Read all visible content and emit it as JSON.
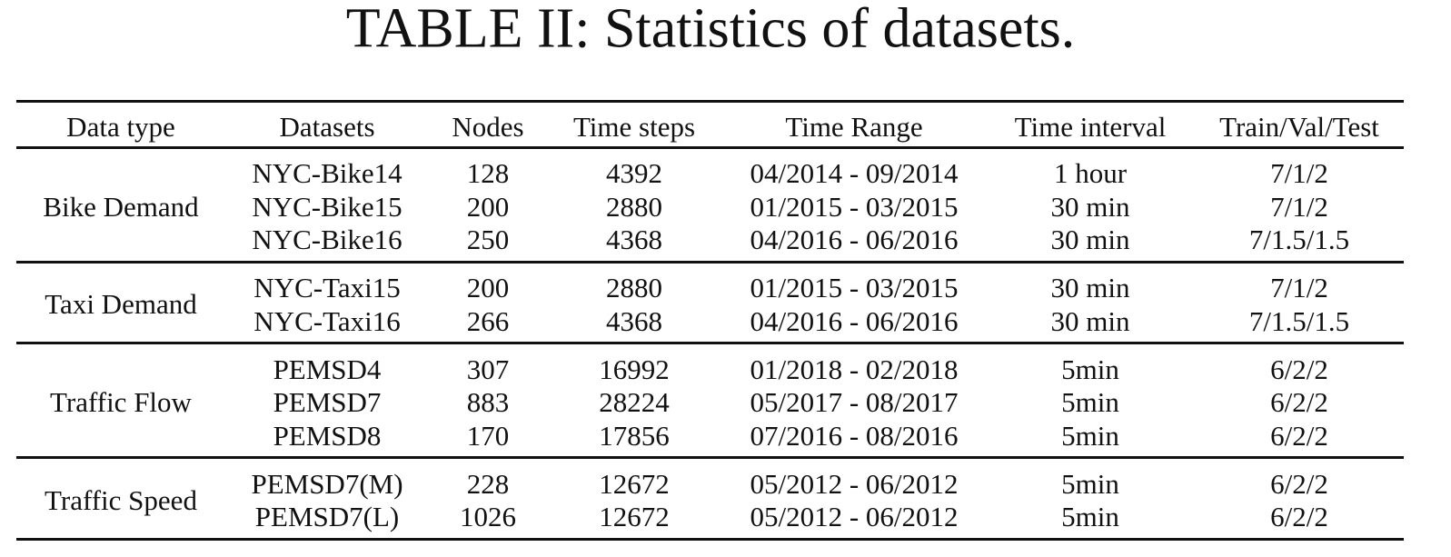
{
  "title": "TABLE II: Statistics of datasets.",
  "table": {
    "header": [
      "Data type",
      "Datasets",
      "Nodes",
      "Time steps",
      "Time Range",
      "Time interval",
      "Train/Val/Test"
    ],
    "groups": [
      {
        "label": "Bike Demand",
        "rows": [
          [
            "NYC-Bike14",
            "128",
            "4392",
            "04/2014 - 09/2014",
            "1 hour",
            "7/1/2"
          ],
          [
            "NYC-Bike15",
            "200",
            "2880",
            "01/2015 - 03/2015",
            "30 min",
            "7/1/2"
          ],
          [
            "NYC-Bike16",
            "250",
            "4368",
            "04/2016 - 06/2016",
            "30 min",
            "7/1.5/1.5"
          ]
        ]
      },
      {
        "label": "Taxi Demand",
        "rows": [
          [
            "NYC-Taxi15",
            "200",
            "2880",
            "01/2015 - 03/2015",
            "30 min",
            "7/1/2"
          ],
          [
            "NYC-Taxi16",
            "266",
            "4368",
            "04/2016 - 06/2016",
            "30 min",
            "7/1.5/1.5"
          ]
        ]
      },
      {
        "label": "Traffic Flow",
        "rows": [
          [
            "PEMSD4",
            "307",
            "16992",
            "01/2018 - 02/2018",
            "5min",
            "6/2/2"
          ],
          [
            "PEMSD7",
            "883",
            "28224",
            "05/2017 - 08/2017",
            "5min",
            "6/2/2"
          ],
          [
            "PEMSD8",
            "170",
            "17856",
            "07/2016 - 08/2016",
            "5min",
            "6/2/2"
          ]
        ]
      },
      {
        "label": "Traffic Speed",
        "rows": [
          [
            "PEMSD7(M)",
            "228",
            "12672",
            "05/2012 - 06/2012",
            "5min",
            "6/2/2"
          ],
          [
            "PEMSD7(L)",
            "1026",
            "12672",
            "05/2012 - 06/2012",
            "5min",
            "6/2/2"
          ]
        ]
      }
    ]
  }
}
